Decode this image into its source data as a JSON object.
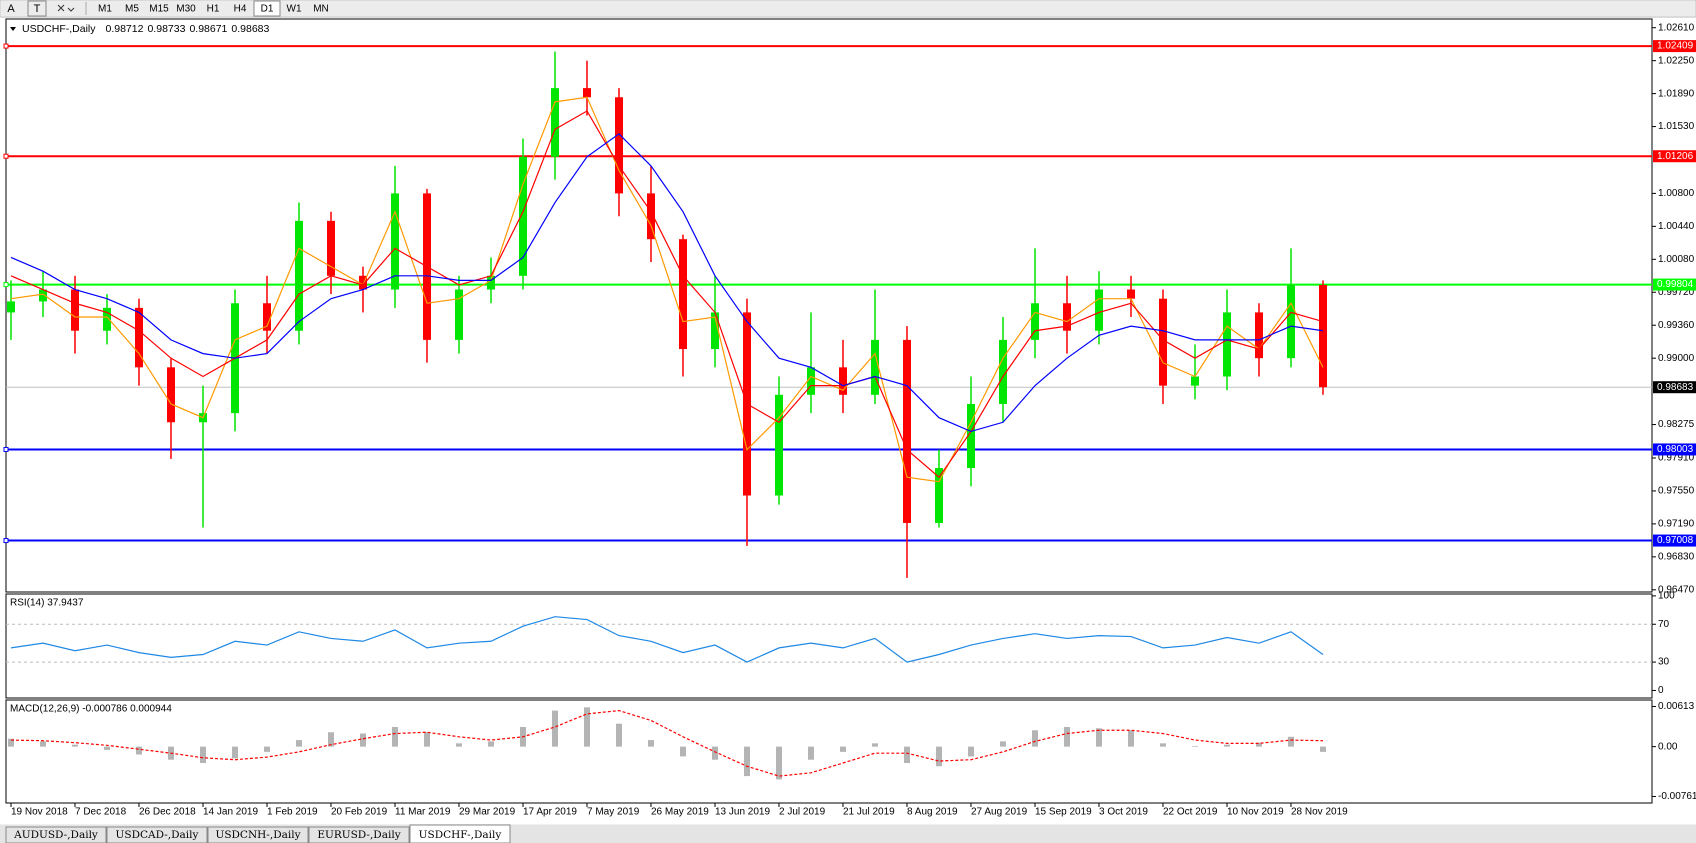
{
  "toolbar": {
    "tools": [
      "A",
      "T"
    ],
    "timeframes": [
      "M1",
      "M5",
      "M15",
      "M30",
      "H1",
      "H4",
      "D1",
      "W1",
      "MN"
    ],
    "active_timeframe": 6
  },
  "tabs": [
    "AUDUSD-,Daily",
    "USDCAD-,Daily",
    "USDCNH-,Daily",
    "EURUSD-,Daily",
    "USDCHF-,Daily"
  ],
  "active_tab": 4,
  "chart_data": [
    {
      "type": "candlestick",
      "symbol": "USDCHF-,Daily",
      "header_values": [
        0.98712,
        0.98733,
        0.98671,
        0.98683
      ],
      "categories": [
        "19 Nov 2018",
        null,
        "7 Dec 2018",
        null,
        "26 Dec 2018",
        null,
        "14 Jan 2019",
        null,
        "1 Feb 2019",
        null,
        "20 Feb 2019",
        null,
        "11 Mar 2019",
        null,
        "29 Mar 2019",
        null,
        "17 Apr 2019",
        null,
        "7 May 2019",
        null,
        "26 May 2019",
        null,
        "13 Jun 2019",
        null,
        "2 Jul 2019",
        null,
        "21 Jul 2019",
        null,
        "8 Aug 2019",
        null,
        "27 Aug 2019",
        null,
        "15 Sep 2019",
        null,
        "3 Oct 2019",
        null,
        "22 Oct 2019",
        null,
        "10 Nov 2019",
        null,
        "28 Nov 2019",
        null
      ],
      "open": [
        0.995,
        0.9962,
        0.9975,
        0.993,
        0.9955,
        0.989,
        0.983,
        0.984,
        0.996,
        0.993,
        1.005,
        0.999,
        0.9975,
        1.008,
        0.992,
        0.9975,
        0.999,
        1.012,
        1.0195,
        1.0185,
        1.008,
        1.003,
        0.991,
        0.995,
        0.975,
        0.986,
        0.989,
        0.986,
        0.992,
        0.972,
        0.978,
        0.985,
        0.992,
        0.996,
        0.993,
        0.9975,
        0.9965,
        0.987,
        0.988,
        0.995,
        0.99,
        0.998
      ],
      "high": [
        0.9985,
        0.9995,
        0.999,
        0.997,
        0.9965,
        0.99,
        0.987,
        0.9975,
        0.999,
        1.007,
        1.006,
        1.0,
        1.011,
        1.0085,
        0.999,
        1.001,
        1.014,
        1.0235,
        1.0225,
        1.0195,
        1.011,
        1.0035,
        0.999,
        0.9965,
        0.988,
        0.995,
        0.992,
        0.9975,
        0.9935,
        0.98,
        0.988,
        0.9945,
        1.002,
        0.999,
        0.9995,
        0.999,
        0.9975,
        0.9915,
        0.9975,
        0.996,
        1.002,
        0.9985
      ],
      "low": [
        0.992,
        0.9945,
        0.9905,
        0.9915,
        0.987,
        0.979,
        0.9715,
        0.982,
        0.9905,
        0.9915,
        0.997,
        0.995,
        0.9955,
        0.9895,
        0.9905,
        0.996,
        0.9975,
        1.0095,
        1.0165,
        1.0055,
        1.0005,
        0.988,
        0.989,
        0.9695,
        0.974,
        0.984,
        0.984,
        0.985,
        0.966,
        0.9715,
        0.976,
        0.983,
        0.99,
        0.9905,
        0.9915,
        0.9945,
        0.985,
        0.9855,
        0.9865,
        0.988,
        0.989,
        0.986
      ],
      "close": [
        0.9962,
        0.9975,
        0.993,
        0.9955,
        0.989,
        0.983,
        0.984,
        0.996,
        0.993,
        1.005,
        0.999,
        0.9975,
        1.008,
        0.992,
        0.9975,
        0.999,
        1.012,
        1.0195,
        1.0185,
        1.008,
        1.003,
        0.991,
        0.995,
        0.975,
        0.986,
        0.989,
        0.986,
        0.992,
        0.972,
        0.978,
        0.985,
        0.992,
        0.996,
        0.993,
        0.9975,
        0.9965,
        0.987,
        0.988,
        0.995,
        0.99,
        0.998,
        0.98683
      ],
      "up_color": "#00e600",
      "down_color": "#ff0000",
      "lines": [
        {
          "color": "#ff9900",
          "values": [
            0.9965,
            0.997,
            0.9945,
            0.9945,
            0.9905,
            0.985,
            0.9835,
            0.992,
            0.9935,
            1.002,
            1.0,
            0.998,
            1.006,
            0.996,
            0.9965,
            0.9985,
            1.009,
            1.018,
            1.0185,
            1.0105,
            1.0045,
            0.994,
            0.9945,
            0.98,
            0.9835,
            0.988,
            0.9865,
            0.9905,
            0.977,
            0.9765,
            0.983,
            0.99,
            0.995,
            0.994,
            0.9965,
            0.9965,
            0.9895,
            0.988,
            0.9935,
            0.991,
            0.996,
            0.989
          ]
        },
        {
          "color": "#ff0000",
          "values": [
            0.999,
            0.9975,
            0.996,
            0.995,
            0.993,
            0.99,
            0.988,
            0.99,
            0.992,
            0.997,
            0.999,
            0.998,
            1.002,
            1.0,
            0.998,
            0.999,
            1.006,
            1.015,
            1.017,
            1.011,
            1.006,
            0.999,
            0.995,
            0.985,
            0.983,
            0.987,
            0.987,
            0.988,
            0.98,
            0.977,
            0.982,
            0.988,
            0.993,
            0.9935,
            0.995,
            0.996,
            0.992,
            0.99,
            0.992,
            0.991,
            0.995,
            0.994
          ]
        },
        {
          "color": "#0000ff",
          "values": [
            1.001,
            0.9995,
            0.9975,
            0.9965,
            0.995,
            0.992,
            0.9905,
            0.99,
            0.9905,
            0.994,
            0.9965,
            0.9975,
            0.999,
            0.999,
            0.9985,
            0.9985,
            1.001,
            1.007,
            1.012,
            1.0145,
            1.011,
            1.006,
            0.999,
            0.994,
            0.99,
            0.989,
            0.987,
            0.988,
            0.987,
            0.9835,
            0.982,
            0.983,
            0.987,
            0.99,
            0.9925,
            0.9935,
            0.993,
            0.992,
            0.992,
            0.992,
            0.9935,
            0.993
          ]
        }
      ],
      "levels": [
        {
          "value": 1.02409,
          "color": "#ff0000"
        },
        {
          "value": 1.01206,
          "color": "#ff0000"
        },
        {
          "value": 0.99804,
          "color": "#00ff00"
        },
        {
          "value": 0.98003,
          "color": "#0000ff"
        },
        {
          "value": 0.97008,
          "color": "#0000ff"
        }
      ],
      "current_price": 0.98683,
      "ylim": [
        0.96446,
        1.02705
      ],
      "yticks": [
        {
          "value": 1.0261,
          "label": "1.02610"
        },
        {
          "value": 1.0225,
          "label": "1.02250"
        },
        {
          "value": 1.0189,
          "label": "1.01890"
        },
        {
          "value": 1.0153,
          "label": "1.01530"
        },
        {
          "value": 1.008,
          "label": "1.00800"
        },
        {
          "value": 1.0044,
          "label": "1.00440"
        },
        {
          "value": 1.0008,
          "label": "1.00080"
        },
        {
          "value": 0.9972,
          "label": "0.99720"
        },
        {
          "value": 0.9936,
          "label": "0.99360"
        },
        {
          "value": 0.99,
          "label": "0.99000"
        },
        {
          "value": 0.98275,
          "label": "0.98275"
        },
        {
          "value": 0.9791,
          "label": "0.97910"
        },
        {
          "value": 0.9755,
          "label": "0.97550"
        },
        {
          "value": 0.9719,
          "label": "0.97190"
        },
        {
          "value": 0.9683,
          "label": "0.96830"
        },
        {
          "value": 0.9647,
          "label": "0.96470"
        }
      ]
    },
    {
      "type": "line",
      "title": "RSI(14) 37.9437",
      "color": "#1e88e5",
      "values": [
        45,
        50,
        42,
        48,
        40,
        35,
        38,
        52,
        48,
        62,
        55,
        52,
        64,
        45,
        50,
        52,
        68,
        78,
        75,
        58,
        52,
        40,
        48,
        30,
        45,
        50,
        45,
        55,
        30,
        38,
        48,
        55,
        60,
        55,
        58,
        57,
        45,
        48,
        56,
        50,
        62,
        38
      ],
      "levels": [
        70,
        30
      ],
      "ylim": [
        -8,
        102
      ],
      "yticks": [
        100,
        70,
        30,
        0
      ]
    },
    {
      "type": "macd",
      "title": "MACD(12,26,9) -0.000786 0.000944",
      "histogram_color": "#b4b4b4",
      "signal_color": "#ff0000",
      "histogram": [
        0.0012,
        0.0008,
        0.0003,
        -0.0005,
        -0.0012,
        -0.002,
        -0.0025,
        -0.0018,
        -0.0008,
        0.001,
        0.0022,
        0.002,
        0.003,
        0.0022,
        0.0005,
        0.0008,
        0.003,
        0.0055,
        0.006,
        0.0035,
        0.001,
        -0.0015,
        -0.002,
        -0.0045,
        -0.005,
        -0.002,
        -0.0008,
        0.0005,
        -0.0025,
        -0.003,
        -0.0015,
        0.0008,
        0.0025,
        0.003,
        0.0028,
        0.0025,
        0.0005,
        0.0001,
        0.0003,
        0.0006,
        0.0015,
        -0.0008
      ],
      "signal": [
        0.001,
        0.0009,
        0.0006,
        0.0002,
        -0.0004,
        -0.001,
        -0.0017,
        -0.002,
        -0.0016,
        -0.0008,
        0.0003,
        0.0012,
        0.002,
        0.0022,
        0.0015,
        0.001,
        0.0015,
        0.003,
        0.005,
        0.0055,
        0.004,
        0.0015,
        -0.0008,
        -0.003,
        -0.0045,
        -0.004,
        -0.0025,
        -0.001,
        -0.001,
        -0.0022,
        -0.002,
        -0.0008,
        0.0008,
        0.002,
        0.0025,
        0.0025,
        0.002,
        0.001,
        0.0005,
        0.0005,
        0.001,
        0.0009
      ],
      "ylim": [
        -0.00861,
        0.00712
      ],
      "yticks": [
        0.00613,
        {
          "value": 0,
          "label": "0.00"
        },
        {
          "value": -0.007612,
          "label": "-0.007612"
        }
      ]
    }
  ]
}
